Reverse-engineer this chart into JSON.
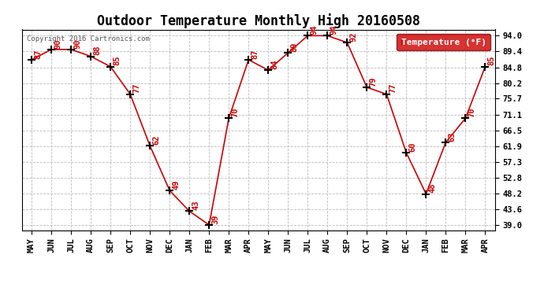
{
  "title": "Outdoor Temperature Monthly High 20160508",
  "copyright": "Copyright 2016 Cartronics.com",
  "legend_label": "Temperature (°F)",
  "x_labels": [
    "MAY",
    "JUN",
    "JUL",
    "AUG",
    "SEP",
    "OCT",
    "NOV",
    "DEC",
    "JAN",
    "FEB",
    "MAR",
    "APR",
    "MAY",
    "JUN",
    "JUL",
    "AUG",
    "SEP",
    "OCT",
    "NOV",
    "DEC",
    "JAN",
    "FEB",
    "MAR",
    "APR"
  ],
  "y_values": [
    87,
    90,
    90,
    88,
    85,
    77,
    62,
    49,
    43,
    39,
    70,
    87,
    84,
    89,
    94,
    94,
    92,
    79,
    77,
    60,
    48,
    63,
    70,
    85
  ],
  "yticks": [
    39.0,
    43.6,
    48.2,
    52.8,
    57.3,
    61.9,
    66.5,
    71.1,
    75.7,
    80.2,
    84.8,
    89.4,
    94.0
  ],
  "ytick_labels": [
    "39.0",
    "43.6",
    "48.2",
    "52.8",
    "57.3",
    "61.9",
    "66.5",
    "71.1",
    "75.7",
    "80.2",
    "84.8",
    "89.4",
    "94.0"
  ],
  "ylim": [
    37.5,
    95.8
  ],
  "line_color": "#cc0000",
  "marker_color": "#000000",
  "bg_color": "#ffffff",
  "grid_color": "#bbbbbb",
  "title_fontsize": 12,
  "axis_label_fontsize": 7.5,
  "annotation_fontsize": 7.5,
  "legend_bg": "#cc0000",
  "legend_text_color": "#ffffff",
  "copyright_color": "#555555"
}
